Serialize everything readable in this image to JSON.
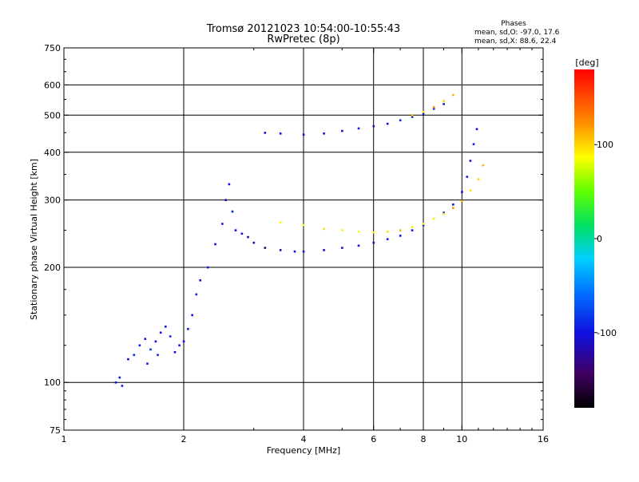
{
  "header": {
    "title": "Tromsø 20121023 10:54:00-10:55:43",
    "subtitle": "RwPretec (8p)"
  },
  "stats": {
    "heading": "Phases",
    "line_o": "mean, sd,O: -97.0, 17.6",
    "line_x": "mean, sd,X:  88.6, 22.4"
  },
  "colorbar": {
    "unit_label": "[deg]",
    "ticks": [
      {
        "value": 100,
        "label": "100"
      },
      {
        "value": 0,
        "label": "0"
      },
      {
        "value": -100,
        "label": "-100"
      }
    ],
    "range": [
      -180,
      180
    ]
  },
  "chart_data": {
    "type": "scatter",
    "title": "Tromsø 20121023 10:54:00-10:55:43",
    "subtitle": "RwPretec (8p)",
    "xlabel": "Frequency [MHz]",
    "ylabel": "Stationary phase Virtual Height [km]",
    "xscale": "log",
    "yscale": "log",
    "xlim": [
      1,
      16
    ],
    "ylim": [
      75,
      750
    ],
    "grid": true,
    "x_ticks": [
      {
        "value": 1,
        "label": "1"
      },
      {
        "value": 2,
        "label": "2"
      },
      {
        "value": 4,
        "label": "4"
      },
      {
        "value": 6,
        "label": "6"
      },
      {
        "value": 8,
        "label": "8"
      },
      {
        "value": 10,
        "label": "10"
      },
      {
        "value": 16,
        "label": "16"
      }
    ],
    "x_grid": [
      2,
      4,
      6,
      8,
      10
    ],
    "y_ticks": [
      {
        "value": 75,
        "label": "75"
      },
      {
        "value": 100,
        "label": "100"
      },
      {
        "value": 200,
        "label": "200"
      },
      {
        "value": 300,
        "label": "300"
      },
      {
        "value": 400,
        "label": "400"
      },
      {
        "value": 500,
        "label": "500"
      },
      {
        "value": 600,
        "label": "600"
      },
      {
        "value": 750,
        "label": "750"
      }
    ],
    "y_grid": [
      100,
      200,
      300,
      400,
      500,
      600
    ],
    "color_axis": {
      "label": "[deg]",
      "range": [
        -180,
        180
      ]
    },
    "series": [
      {
        "name": "O",
        "points": [
          [
            1.35,
            100,
            -95
          ],
          [
            1.38,
            103,
            -100
          ],
          [
            1.4,
            98,
            -95
          ],
          [
            1.45,
            115,
            -100
          ],
          [
            1.5,
            118,
            -90
          ],
          [
            1.55,
            125,
            -95
          ],
          [
            1.6,
            130,
            -100
          ],
          [
            1.62,
            112,
            -95
          ],
          [
            1.65,
            122,
            -85
          ],
          [
            1.7,
            128,
            -100
          ],
          [
            1.72,
            118,
            -95
          ],
          [
            1.75,
            135,
            -100
          ],
          [
            1.8,
            140,
            -95
          ],
          [
            1.85,
            132,
            -90
          ],
          [
            1.9,
            120,
            -100
          ],
          [
            1.95,
            125,
            -95
          ],
          [
            2.0,
            128,
            -100
          ],
          [
            2.05,
            138,
            -95
          ],
          [
            2.1,
            150,
            -100
          ],
          [
            2.15,
            170,
            -95
          ],
          [
            2.2,
            185,
            -100
          ],
          [
            2.3,
            200,
            -95
          ],
          [
            2.4,
            230,
            -100
          ],
          [
            2.5,
            260,
            -95
          ],
          [
            2.55,
            300,
            -100
          ],
          [
            2.6,
            330,
            -100
          ],
          [
            2.65,
            280,
            -95
          ],
          [
            2.7,
            250,
            -100
          ],
          [
            2.8,
            245,
            -110
          ],
          [
            2.9,
            240,
            -115
          ],
          [
            3.0,
            232,
            -120
          ],
          [
            3.2,
            225,
            -130
          ],
          [
            3.5,
            222,
            -120
          ],
          [
            3.8,
            220,
            -110
          ],
          [
            4.0,
            220,
            -100
          ],
          [
            4.5,
            222,
            -100
          ],
          [
            5.0,
            225,
            -100
          ],
          [
            5.5,
            228,
            -105
          ],
          [
            6.0,
            232,
            -100
          ],
          [
            6.5,
            237,
            -95
          ],
          [
            7.0,
            242,
            -100
          ],
          [
            7.5,
            250,
            -95
          ],
          [
            8.0,
            258,
            -100
          ],
          [
            8.5,
            268,
            -95
          ],
          [
            9.0,
            278,
            -100
          ],
          [
            9.5,
            292,
            -100
          ],
          [
            10.0,
            315,
            -100
          ],
          [
            10.3,
            345,
            -95
          ],
          [
            10.5,
            380,
            -100
          ],
          [
            10.7,
            420,
            -95
          ],
          [
            10.9,
            460,
            -100
          ],
          [
            3.2,
            450,
            -100
          ],
          [
            3.5,
            448,
            -100
          ],
          [
            4.0,
            445,
            -100
          ],
          [
            4.5,
            448,
            -105
          ],
          [
            5.0,
            455,
            -100
          ],
          [
            5.5,
            462,
            -95
          ],
          [
            6.0,
            468,
            -100
          ],
          [
            6.5,
            475,
            -100
          ],
          [
            7.0,
            485,
            -90
          ],
          [
            7.5,
            495,
            -100
          ],
          [
            8.0,
            505,
            -95
          ],
          [
            8.5,
            520,
            -100
          ],
          [
            9.0,
            535,
            -95
          ]
        ]
      },
      {
        "name": "X",
        "points": [
          [
            3.5,
            262,
            90
          ],
          [
            4.0,
            258,
            85
          ],
          [
            4.5,
            252,
            95
          ],
          [
            5.0,
            250,
            90
          ],
          [
            5.5,
            248,
            85
          ],
          [
            6.0,
            247,
            90
          ],
          [
            6.5,
            248,
            95
          ],
          [
            7.0,
            250,
            110
          ],
          [
            7.5,
            255,
            90
          ],
          [
            8.0,
            260,
            85
          ],
          [
            8.5,
            268,
            90
          ],
          [
            9.0,
            276,
            95
          ],
          [
            9.5,
            286,
            120
          ],
          [
            10.0,
            298,
            110
          ],
          [
            10.5,
            318,
            95
          ],
          [
            11.0,
            340,
            100
          ],
          [
            11.3,
            370,
            110
          ],
          [
            7.5,
            500,
            110
          ],
          [
            8.0,
            510,
            95
          ],
          [
            8.5,
            525,
            120
          ],
          [
            9.0,
            545,
            100
          ],
          [
            9.5,
            565,
            110
          ]
        ]
      }
    ]
  }
}
